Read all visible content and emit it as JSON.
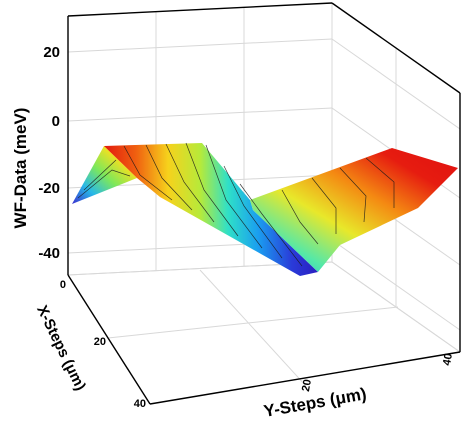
{
  "chart_data": {
    "type": "surface3d",
    "zlabel": "WF-Data (meV)",
    "xlabel": "Y-Steps (μm)",
    "ylabel": "X-Steps (μm)",
    "z_ticks": [
      "20",
      "0",
      "-20",
      "-40"
    ],
    "y_steps_ticks": [
      "20",
      "40"
    ],
    "x_steps_ticks": [
      "0",
      "20",
      "40"
    ],
    "zlim": [
      -50,
      30
    ],
    "grid": true,
    "colormap": "rainbow (blue = low, red = high)",
    "surface_rows": [
      {
        "x_steps": 0,
        "y_steps": [
          0,
          10,
          20,
          30,
          40
        ],
        "wf": [
          -10,
          -18,
          -34,
          -12,
          -4
        ]
      },
      {
        "x_steps": 20,
        "y_steps": [
          0,
          10,
          20,
          30,
          40
        ],
        "wf": [
          -16,
          -22,
          -38,
          -20,
          -10
        ]
      },
      {
        "x_steps": 40,
        "y_steps": [
          0,
          10,
          20,
          30,
          40
        ],
        "wf": [
          -24,
          -30,
          -44,
          -26,
          -18
        ]
      }
    ]
  },
  "colors": {
    "low": "#1f1fb4",
    "mid": "#2fe0e0",
    "high": "#e01010"
  }
}
